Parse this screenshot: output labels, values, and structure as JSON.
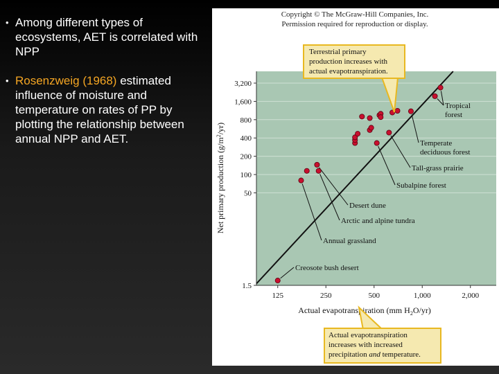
{
  "slide": {
    "bullets": [
      {
        "text": "Among different types of ecosystems, AET is correlated with NPP"
      },
      {
        "highlight": "Rosenzweig (1968)",
        "text": " estimated influence of moisture and temperature on rates of PP by plotting the relationship between annual NPP and AET."
      }
    ]
  },
  "figure": {
    "copyright_line1": "Copyright © The McGraw-Hill Companies, Inc.",
    "copyright_line2": "Permission required for reproduction or display.",
    "callout_top": [
      "Terrestrial primary",
      "production increases with",
      "actual evapotranspiration."
    ],
    "callout_bottom": [
      "Actual evapotranspiration",
      "increases with increased",
      "precipitation ",
      "and",
      " temperature."
    ]
  },
  "chart_data": {
    "type": "scatter",
    "xlabel": "Actual evapotranspiration (mm H2O/yr)",
    "ylabel": "Net primary production (g/m2/yr)",
    "x_scale": "log",
    "y_scale": "log",
    "xlim": [
      92,
      2900
    ],
    "ylim": [
      1.5,
      5000
    ],
    "x_ticks": [
      125,
      250,
      500,
      1000,
      2000
    ],
    "x_tick_labels": [
      "125",
      "250",
      "500",
      "1,000",
      "2,000"
    ],
    "y_ticks": [
      1.5,
      50,
      100,
      200,
      400,
      800,
      1600,
      3200
    ],
    "y_tick_labels": [
      "1.5",
      "50",
      "100",
      "200",
      "400",
      "800",
      "1,600",
      "3,200"
    ],
    "points": [
      {
        "x": 125,
        "y": 1.8
      },
      {
        "x": 175,
        "y": 80
      },
      {
        "x": 190,
        "y": 115
      },
      {
        "x": 220,
        "y": 145
      },
      {
        "x": 225,
        "y": 115
      },
      {
        "x": 380,
        "y": 330
      },
      {
        "x": 380,
        "y": 370
      },
      {
        "x": 380,
        "y": 410
      },
      {
        "x": 395,
        "y": 470
      },
      {
        "x": 420,
        "y": 900
      },
      {
        "x": 470,
        "y": 850
      },
      {
        "x": 470,
        "y": 540
      },
      {
        "x": 480,
        "y": 590
      },
      {
        "x": 520,
        "y": 330
      },
      {
        "x": 540,
        "y": 950
      },
      {
        "x": 550,
        "y": 1000
      },
      {
        "x": 550,
        "y": 880
      },
      {
        "x": 620,
        "y": 490
      },
      {
        "x": 650,
        "y": 1050
      },
      {
        "x": 700,
        "y": 1120
      },
      {
        "x": 850,
        "y": 1100
      },
      {
        "x": 1200,
        "y": 1950
      },
      {
        "x": 1300,
        "y": 2700
      }
    ],
    "trend_line": [
      {
        "x": 92,
        "y": 1.6
      },
      {
        "x": 1560,
        "y": 5000
      }
    ],
    "annotations": [
      {
        "lines": [
          "Tropical",
          "forest"
        ],
        "targets": [
          {
            "x": 1300,
            "y": 2700
          },
          {
            "x": 1200,
            "y": 1950
          }
        ]
      },
      {
        "lines": [
          "Temperate",
          "deciduous forest"
        ],
        "targets": [
          {
            "x": 850,
            "y": 1100
          }
        ]
      },
      {
        "lines": [
          "Tall-grass prairie"
        ],
        "targets": [
          {
            "x": 620,
            "y": 490
          }
        ]
      },
      {
        "lines": [
          "Subalpine forest"
        ],
        "targets": [
          {
            "x": 520,
            "y": 330
          }
        ]
      },
      {
        "lines": [
          "Desert dune"
        ],
        "targets": [
          {
            "x": 220,
            "y": 145
          }
        ]
      },
      {
        "lines": [
          "Arctic and alpine tundra"
        ],
        "targets": [
          {
            "x": 225,
            "y": 115
          }
        ]
      },
      {
        "lines": [
          "Annual grassland"
        ],
        "targets": [
          {
            "x": 175,
            "y": 80
          }
        ]
      },
      {
        "lines": [
          "Creosote bush desert"
        ],
        "targets": [
          {
            "x": 125,
            "y": 1.8
          }
        ]
      }
    ],
    "colors": {
      "plot_bg": "#a9c7b3",
      "point": "#c8102e",
      "callout_bg": "#f5e9b0",
      "callout_border": "#e8b820"
    }
  }
}
